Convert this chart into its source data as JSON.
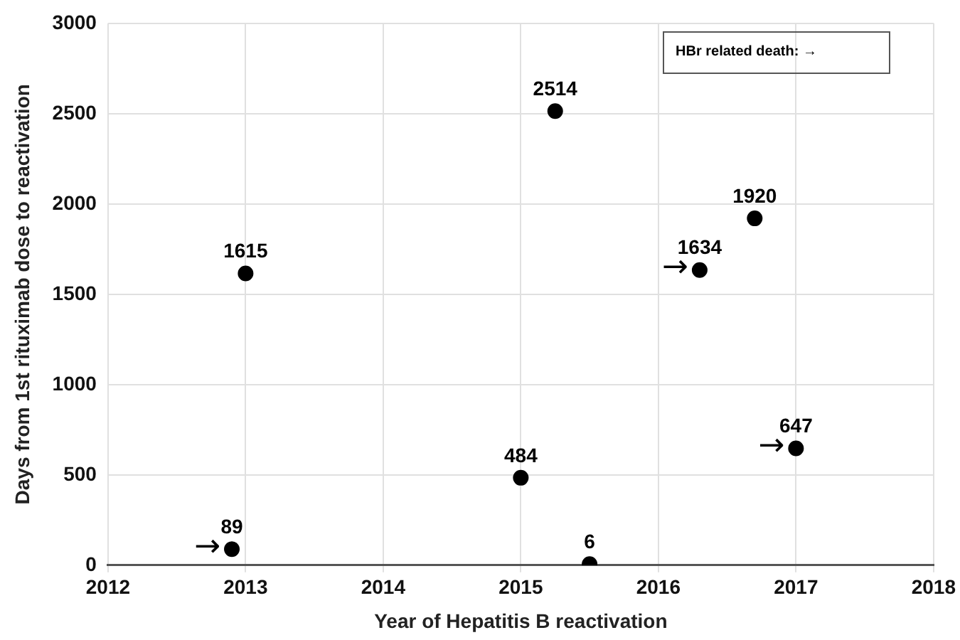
{
  "chart_data": {
    "type": "scatter",
    "xlabel": "Year of Hepatitis B reactivation",
    "ylabel": "Days from 1st rituximab dose to reactivation",
    "x": [
      2012.9,
      2013.0,
      2015.0,
      2015.25,
      2015.5,
      2016.3,
      2016.7,
      2017.0
    ],
    "values": [
      89,
      1615,
      484,
      2514,
      6,
      1634,
      1920,
      647
    ],
    "color": "#000000",
    "marker": "circle",
    "data_labels": true,
    "xlim": [
      2012,
      2018
    ],
    "xticks": [
      2012,
      2013,
      2014,
      2015,
      2016,
      2017,
      2018
    ],
    "ylim": [
      0,
      3000
    ],
    "yticks": [
      0,
      500,
      1000,
      1500,
      2000,
      2500,
      3000
    ],
    "grid": true,
    "annotations": [
      "HBr related death: →",
      {
        "text": "→",
        "x": 2012.9,
        "y": 89
      },
      {
        "text": "→",
        "x": 2016.3,
        "y": 1634
      },
      {
        "text": "→",
        "x": 2017.0,
        "y": 647
      }
    ]
  }
}
